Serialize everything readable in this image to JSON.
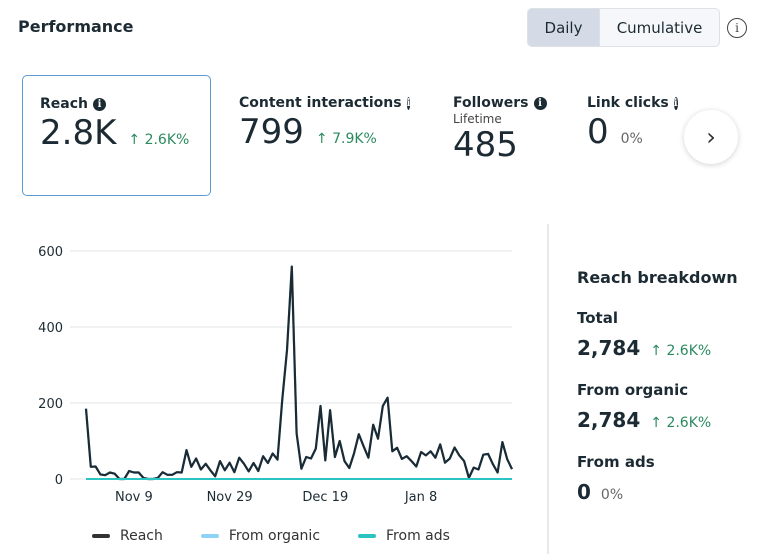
{
  "header": {
    "title": "Performance",
    "toggle": {
      "daily": "Daily",
      "cumulative": "Cumulative",
      "selected": "Daily"
    },
    "info_icon": "info-outline-icon"
  },
  "metrics": [
    {
      "label": "Reach",
      "value": "2.8K",
      "change": "2.6K%",
      "trend": "up",
      "selected": true
    },
    {
      "label": "Content interactions",
      "value": "799",
      "change": "7.9K%",
      "trend": "up"
    },
    {
      "label": "Followers",
      "sublabel": "Lifetime",
      "value": "485"
    },
    {
      "label": "Link clicks",
      "value": "0",
      "change": "0%"
    }
  ],
  "next_icon": "chevron-right-icon",
  "colors": {
    "accent": "#5a9bd3",
    "positive": "#2b8a5e",
    "reach": "#1c2b33",
    "organic": "#8fd3f8",
    "ads": "#2cc3c3"
  },
  "breakdown": {
    "title": "Reach breakdown",
    "items": [
      {
        "label": "Total",
        "value": "2,784",
        "change": "2.6K%",
        "trend": "up"
      },
      {
        "label": "From organic",
        "value": "2,784",
        "change": "2.6K%",
        "trend": "up"
      },
      {
        "label": "From ads",
        "value": "0",
        "change": "0%"
      }
    ]
  },
  "chart_data": {
    "type": "line",
    "ylim": [
      0,
      600
    ],
    "yticks": [
      "0",
      "200",
      "400",
      "600"
    ],
    "xticks": [
      "Nov 9",
      "Nov 29",
      "Dec 19",
      "Jan 8"
    ],
    "grid": true,
    "legend_position": "bottom",
    "x": [
      "Oct 30",
      "Oct 31",
      "Nov 1",
      "Nov 2",
      "Nov 3",
      "Nov 4",
      "Nov 5",
      "Nov 6",
      "Nov 7",
      "Nov 8",
      "Nov 9",
      "Nov 10",
      "Nov 11",
      "Nov 12",
      "Nov 13",
      "Nov 14",
      "Nov 15",
      "Nov 16",
      "Nov 17",
      "Nov 18",
      "Nov 19",
      "Nov 20",
      "Nov 21",
      "Nov 22",
      "Nov 23",
      "Nov 24",
      "Nov 25",
      "Nov 26",
      "Nov 27",
      "Nov 28",
      "Nov 29",
      "Nov 30",
      "Dec 1",
      "Dec 2",
      "Dec 3",
      "Dec 4",
      "Dec 5",
      "Dec 6",
      "Dec 7",
      "Dec 8",
      "Dec 9",
      "Dec 10",
      "Dec 11",
      "Dec 12",
      "Dec 13",
      "Dec 14",
      "Dec 15",
      "Dec 16",
      "Dec 17",
      "Dec 18",
      "Dec 19",
      "Dec 20",
      "Dec 21",
      "Dec 22",
      "Dec 23",
      "Dec 24",
      "Dec 25",
      "Dec 26",
      "Dec 27",
      "Dec 28",
      "Dec 29",
      "Dec 30",
      "Dec 31",
      "Jan 1",
      "Jan 2",
      "Jan 3",
      "Jan 4",
      "Jan 5",
      "Jan 6",
      "Jan 7",
      "Jan 8",
      "Jan 9",
      "Jan 10",
      "Jan 11",
      "Jan 12",
      "Jan 13",
      "Jan 14",
      "Jan 15",
      "Jan 16",
      "Jan 17",
      "Jan 18",
      "Jan 19",
      "Jan 20",
      "Jan 21",
      "Jan 22",
      "Jan 23",
      "Jan 24",
      "Jan 25",
      "Jan 26",
      "Jan 27"
    ],
    "series": [
      {
        "name": "Reach",
        "color": "#1c2b33",
        "values": [
          185,
          32,
          33,
          12,
          10,
          17,
          14,
          0,
          0,
          21,
          17,
          17,
          3,
          0,
          0,
          3,
          18,
          11,
          11,
          18,
          17,
          76,
          32,
          54,
          25,
          40,
          23,
          7,
          47,
          23,
          43,
          18,
          56,
          40,
          20,
          42,
          21,
          60,
          42,
          67,
          51,
          207,
          339,
          559,
          120,
          27,
          58,
          54,
          80,
          192,
          49,
          181,
          58,
          100,
          47,
          29,
          67,
          118,
          86,
          56,
          143,
          106,
          192,
          214,
          73,
          82,
          53,
          60,
          47,
          33,
          71,
          62,
          73,
          56,
          91,
          43,
          54,
          83,
          62,
          47,
          3,
          30,
          25,
          64,
          66,
          39,
          17,
          97,
          52,
          26
        ]
      },
      {
        "name": "From organic",
        "color": "#8fd3f8",
        "values": [
          185,
          32,
          33,
          12,
          10,
          17,
          14,
          0,
          0,
          21,
          17,
          17,
          3,
          0,
          0,
          3,
          18,
          11,
          11,
          18,
          17,
          76,
          32,
          54,
          25,
          40,
          23,
          7,
          47,
          23,
          43,
          18,
          56,
          40,
          20,
          42,
          21,
          60,
          42,
          67,
          51,
          207,
          339,
          559,
          120,
          27,
          58,
          54,
          80,
          192,
          49,
          181,
          58,
          100,
          47,
          29,
          67,
          118,
          86,
          56,
          143,
          106,
          192,
          214,
          73,
          82,
          53,
          60,
          47,
          33,
          71,
          62,
          73,
          56,
          91,
          43,
          54,
          83,
          62,
          47,
          3,
          30,
          25,
          64,
          66,
          39,
          17,
          97,
          52,
          26
        ]
      },
      {
        "name": "From ads",
        "color": "#2cc3c3",
        "values": [
          0,
          0,
          0,
          0,
          0,
          0,
          0,
          0,
          0,
          0,
          0,
          0,
          0,
          0,
          0,
          0,
          0,
          0,
          0,
          0,
          0,
          0,
          0,
          0,
          0,
          0,
          0,
          0,
          0,
          0,
          0,
          0,
          0,
          0,
          0,
          0,
          0,
          0,
          0,
          0,
          0,
          0,
          0,
          0,
          0,
          0,
          0,
          0,
          0,
          0,
          0,
          0,
          0,
          0,
          0,
          0,
          0,
          0,
          0,
          0,
          0,
          0,
          0,
          0,
          0,
          0,
          0,
          0,
          0,
          0,
          0,
          0,
          0,
          0,
          0,
          0,
          0,
          0,
          0,
          0,
          0,
          0,
          0,
          0,
          0,
          0,
          0,
          0,
          0,
          0
        ]
      }
    ]
  }
}
